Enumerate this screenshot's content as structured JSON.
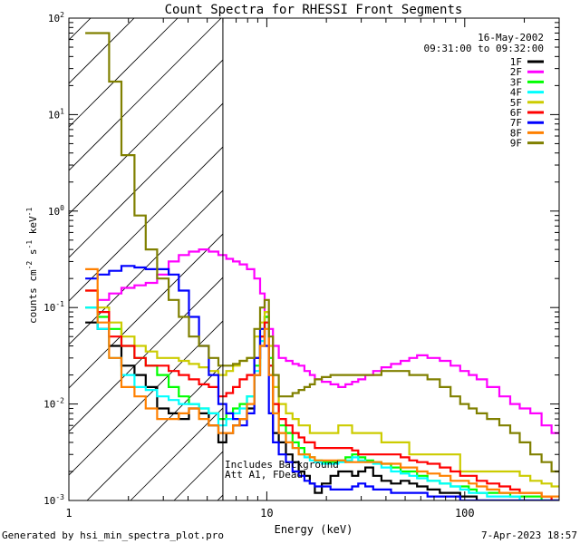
{
  "chart_data": {
    "type": "line",
    "title": "Count Spectra for RHESSI Front Segments",
    "xlabel": "Energy (keV)",
    "ylabel_main": "counts cm",
    "ylabel_sup1": "-2",
    "ylabel_mid": " s",
    "ylabel_sup2": "-1",
    "ylabel_mid2": " keV",
    "ylabel_sup3": "-1",
    "xscale": "log",
    "yscale": "log",
    "xlim": [
      1.0,
      300.0
    ],
    "ylim": [
      0.001,
      100.0
    ],
    "x_ticks": [
      {
        "value": 1,
        "label": "1"
      },
      {
        "value": 10,
        "label": "10"
      },
      {
        "value": 100,
        "label": "100"
      }
    ],
    "y_ticks": [
      {
        "value": 0.001,
        "base": "10",
        "exp": "-3"
      },
      {
        "value": 0.01,
        "base": "10",
        "exp": "-2"
      },
      {
        "value": 0.1,
        "base": "10",
        "exp": "-1"
      },
      {
        "value": 1,
        "base": "10",
        "exp": "0"
      },
      {
        "value": 10,
        "base": "10",
        "exp": "1"
      },
      {
        "value": 100,
        "base": "10",
        "exp": "2"
      }
    ],
    "date": "16-May-2002",
    "time_range": "09:31:00 to 09:32:00",
    "annotation_line1": "Includes Background",
    "annotation_line2": "Att A1, FDead",
    "attenuator_cutoff_kev": 6.0,
    "legend_position": "top-right",
    "series": [
      {
        "name": "1F",
        "color": "#000000",
        "x": [
          1.3,
          1.5,
          1.7,
          2.0,
          2.3,
          2.6,
          3.0,
          3.4,
          3.8,
          4.3,
          4.8,
          5.4,
          6.0,
          6.5,
          7.0,
          7.6,
          8.3,
          9.0,
          9.5,
          10.0,
          10.5,
          11.0,
          12.0,
          13.0,
          14.0,
          15.0,
          16.0,
          17.0,
          18.0,
          20.0,
          22.0,
          24.0,
          26.0,
          28.0,
          30.0,
          33.0,
          36.0,
          40.0,
          45.0,
          50.0,
          55.0,
          60.0,
          70.0,
          80.0,
          90.0,
          100.0,
          110.0,
          120.0,
          140.0,
          160.0,
          180.0,
          200.0,
          230.0,
          260.0,
          290.0
        ],
        "y": [
          0.07,
          0.06,
          0.04,
          0.025,
          0.02,
          0.015,
          0.009,
          0.008,
          0.007,
          0.009,
          0.008,
          0.006,
          0.004,
          0.005,
          0.006,
          0.007,
          0.009,
          0.02,
          0.04,
          0.08,
          0.02,
          0.005,
          0.004,
          0.003,
          0.0025,
          0.002,
          0.0018,
          0.0015,
          0.0012,
          0.0015,
          0.0018,
          0.002,
          0.002,
          0.0018,
          0.002,
          0.0022,
          0.0018,
          0.0016,
          0.0015,
          0.0016,
          0.0015,
          0.0014,
          0.0013,
          0.0012,
          0.0012,
          0.0011,
          0.0011,
          0.001,
          0.001,
          0.001,
          0.001,
          0.001,
          0.001,
          0.001,
          0.001
        ]
      },
      {
        "name": "2F",
        "color": "#ff00ff",
        "x": [
          1.3,
          1.5,
          1.7,
          2.0,
          2.3,
          2.6,
          3.0,
          3.4,
          3.8,
          4.3,
          4.8,
          5.4,
          6.0,
          6.5,
          7.0,
          7.6,
          8.3,
          9.0,
          9.5,
          10.0,
          10.5,
          11.0,
          12.0,
          13.0,
          14.0,
          15.0,
          16.0,
          17.0,
          18.0,
          20.0,
          22.0,
          24.0,
          26.0,
          28.0,
          30.0,
          33.0,
          36.0,
          40.0,
          45.0,
          50.0,
          55.0,
          60.0,
          70.0,
          80.0,
          90.0,
          100.0,
          110.0,
          120.0,
          140.0,
          160.0,
          180.0,
          200.0,
          230.0,
          260.0,
          290.0
        ],
        "y": [
          0.1,
          0.12,
          0.14,
          0.16,
          0.17,
          0.18,
          0.22,
          0.3,
          0.35,
          0.38,
          0.4,
          0.38,
          0.35,
          0.32,
          0.3,
          0.28,
          0.25,
          0.2,
          0.14,
          0.09,
          0.06,
          0.04,
          0.03,
          0.028,
          0.026,
          0.025,
          0.022,
          0.02,
          0.018,
          0.017,
          0.016,
          0.015,
          0.016,
          0.017,
          0.018,
          0.02,
          0.022,
          0.024,
          0.026,
          0.028,
          0.03,
          0.032,
          0.03,
          0.028,
          0.025,
          0.022,
          0.02,
          0.018,
          0.015,
          0.012,
          0.01,
          0.009,
          0.008,
          0.006,
          0.005
        ]
      },
      {
        "name": "3F",
        "color": "#00ff00",
        "x": [
          1.3,
          1.5,
          1.7,
          2.0,
          2.3,
          2.6,
          3.0,
          3.4,
          3.8,
          4.3,
          4.8,
          5.4,
          6.0,
          6.5,
          7.0,
          7.6,
          8.3,
          9.0,
          9.5,
          10.0,
          10.5,
          11.0,
          12.0,
          13.0,
          14.0,
          15.0,
          16.0,
          17.0,
          18.0,
          20.0,
          22.0,
          24.0,
          26.0,
          28.0,
          30.0,
          33.0,
          36.0,
          40.0,
          45.0,
          50.0,
          55.0,
          60.0,
          70.0,
          80.0,
          90.0,
          100.0,
          110.0,
          120.0,
          140.0,
          160.0,
          180.0,
          200.0,
          230.0,
          260.0,
          290.0
        ],
        "y": [
          0.1,
          0.08,
          0.06,
          0.04,
          0.03,
          0.025,
          0.02,
          0.015,
          0.012,
          0.01,
          0.009,
          0.008,
          0.007,
          0.008,
          0.009,
          0.01,
          0.012,
          0.025,
          0.05,
          0.08,
          0.03,
          0.01,
          0.006,
          0.005,
          0.004,
          0.0035,
          0.003,
          0.0028,
          0.0026,
          0.0025,
          0.0025,
          0.0026,
          0.0028,
          0.003,
          0.0028,
          0.0026,
          0.0025,
          0.0024,
          0.0022,
          0.002,
          0.002,
          0.0018,
          0.0016,
          0.0015,
          0.0014,
          0.0014,
          0.0013,
          0.0012,
          0.0012,
          0.0012,
          0.0011,
          0.0011,
          0.0011,
          0.001,
          0.001
        ]
      },
      {
        "name": "4F",
        "color": "#00ffff",
        "x": [
          1.3,
          1.5,
          1.7,
          2.0,
          2.3,
          2.6,
          3.0,
          3.4,
          3.8,
          4.3,
          4.8,
          5.4,
          6.0,
          6.5,
          7.0,
          7.6,
          8.3,
          9.0,
          9.5,
          10.0,
          10.5,
          11.0,
          12.0,
          13.0,
          14.0,
          15.0,
          16.0,
          17.0,
          18.0,
          20.0,
          22.0,
          24.0,
          26.0,
          28.0,
          30.0,
          33.0,
          36.0,
          40.0,
          45.0,
          50.0,
          55.0,
          60.0,
          70.0,
          80.0,
          90.0,
          100.0,
          110.0,
          120.0,
          140.0,
          160.0,
          180.0,
          200.0,
          230.0,
          260.0,
          290.0
        ],
        "y": [
          0.1,
          0.06,
          0.03,
          0.02,
          0.015,
          0.014,
          0.012,
          0.011,
          0.01,
          0.01,
          0.009,
          0.008,
          0.006,
          0.007,
          0.008,
          0.009,
          0.012,
          0.022,
          0.045,
          0.07,
          0.025,
          0.008,
          0.005,
          0.004,
          0.0035,
          0.003,
          0.0028,
          0.0026,
          0.0025,
          0.0024,
          0.0024,
          0.0025,
          0.0026,
          0.0028,
          0.0026,
          0.0025,
          0.0024,
          0.0022,
          0.002,
          0.0019,
          0.0018,
          0.0017,
          0.0016,
          0.0015,
          0.0014,
          0.0013,
          0.0012,
          0.0012,
          0.0011,
          0.0011,
          0.0011,
          0.001,
          0.001,
          0.001,
          0.001
        ]
      },
      {
        "name": "5F",
        "color": "#cccc00",
        "x": [
          1.3,
          1.5,
          1.7,
          2.0,
          2.3,
          2.6,
          3.0,
          3.4,
          3.8,
          4.3,
          4.8,
          5.4,
          6.0,
          6.5,
          7.0,
          7.6,
          8.3,
          9.0,
          9.5,
          10.0,
          10.5,
          11.0,
          12.0,
          13.0,
          14.0,
          15.0,
          16.0,
          17.0,
          18.0,
          20.0,
          22.0,
          24.0,
          26.0,
          28.0,
          30.0,
          33.0,
          36.0,
          40.0,
          45.0,
          50.0,
          55.0,
          60.0,
          70.0,
          80.0,
          90.0,
          100.0,
          110.0,
          120.0,
          140.0,
          160.0,
          180.0,
          200.0,
          230.0,
          260.0,
          290.0
        ],
        "y": [
          0.15,
          0.1,
          0.07,
          0.05,
          0.04,
          0.035,
          0.03,
          0.03,
          0.028,
          0.026,
          0.024,
          0.022,
          0.02,
          0.022,
          0.025,
          0.028,
          0.03,
          0.05,
          0.07,
          0.09,
          0.04,
          0.015,
          0.01,
          0.008,
          0.007,
          0.006,
          0.006,
          0.005,
          0.005,
          0.005,
          0.005,
          0.006,
          0.006,
          0.005,
          0.005,
          0.005,
          0.005,
          0.004,
          0.004,
          0.004,
          0.003,
          0.003,
          0.003,
          0.003,
          0.003,
          0.002,
          0.002,
          0.002,
          0.002,
          0.002,
          0.002,
          0.0018,
          0.0016,
          0.0015,
          0.0014
        ]
      },
      {
        "name": "6F",
        "color": "#ff0000",
        "x": [
          1.3,
          1.5,
          1.7,
          2.0,
          2.3,
          2.6,
          3.0,
          3.4,
          3.8,
          4.3,
          4.8,
          5.4,
          6.0,
          6.5,
          7.0,
          7.6,
          8.3,
          9.0,
          9.5,
          10.0,
          10.5,
          11.0,
          12.0,
          13.0,
          14.0,
          15.0,
          16.0,
          17.0,
          18.0,
          20.0,
          22.0,
          24.0,
          26.0,
          28.0,
          30.0,
          33.0,
          36.0,
          40.0,
          45.0,
          50.0,
          55.0,
          60.0,
          70.0,
          80.0,
          90.0,
          100.0,
          110.0,
          120.0,
          140.0,
          160.0,
          180.0,
          200.0,
          230.0,
          260.0,
          290.0
        ],
        "y": [
          0.15,
          0.09,
          0.05,
          0.04,
          0.03,
          0.025,
          0.025,
          0.022,
          0.02,
          0.018,
          0.016,
          0.015,
          0.012,
          0.013,
          0.015,
          0.018,
          0.02,
          0.03,
          0.05,
          0.07,
          0.025,
          0.01,
          0.007,
          0.006,
          0.005,
          0.0045,
          0.004,
          0.004,
          0.0035,
          0.0035,
          0.0035,
          0.0035,
          0.0035,
          0.0033,
          0.003,
          0.003,
          0.003,
          0.003,
          0.003,
          0.0028,
          0.0026,
          0.0025,
          0.0024,
          0.0022,
          0.002,
          0.0018,
          0.0018,
          0.0016,
          0.0015,
          0.0014,
          0.0013,
          0.0012,
          0.0012,
          0.0011,
          0.001
        ]
      },
      {
        "name": "7F",
        "color": "#0000ff",
        "x": [
          1.3,
          1.5,
          1.7,
          2.0,
          2.3,
          2.6,
          3.0,
          3.4,
          3.8,
          4.3,
          4.8,
          5.4,
          6.0,
          6.5,
          7.0,
          7.6,
          8.3,
          9.0,
          9.5,
          10.0,
          10.5,
          11.0,
          12.0,
          13.0,
          14.0,
          15.0,
          16.0,
          17.0,
          18.0,
          20.0,
          22.0,
          24.0,
          26.0,
          28.0,
          30.0,
          33.0,
          36.0,
          40.0,
          45.0,
          50.0,
          55.0,
          60.0,
          70.0,
          80.0,
          90.0,
          100.0,
          110.0,
          120.0,
          140.0,
          160.0,
          180.0,
          200.0,
          230.0,
          260.0,
          290.0
        ],
        "y": [
          0.2,
          0.22,
          0.24,
          0.27,
          0.26,
          0.25,
          0.25,
          0.22,
          0.15,
          0.08,
          0.04,
          0.02,
          0.01,
          0.008,
          0.007,
          0.006,
          0.008,
          0.03,
          0.06,
          0.04,
          0.008,
          0.004,
          0.003,
          0.0025,
          0.002,
          0.0018,
          0.0016,
          0.0015,
          0.0014,
          0.0014,
          0.0013,
          0.0013,
          0.0013,
          0.0014,
          0.0015,
          0.0014,
          0.0013,
          0.0013,
          0.0012,
          0.0012,
          0.0012,
          0.0012,
          0.0011,
          0.0011,
          0.0011,
          0.001,
          0.001,
          0.001,
          0.001,
          0.001,
          0.001,
          0.001,
          0.001,
          0.001,
          0.001
        ]
      },
      {
        "name": "8F",
        "color": "#ff8000",
        "x": [
          1.3,
          1.5,
          1.7,
          2.0,
          2.3,
          2.6,
          3.0,
          3.4,
          3.8,
          4.3,
          4.8,
          5.4,
          6.0,
          6.5,
          7.0,
          7.6,
          8.3,
          9.0,
          9.5,
          10.0,
          10.5,
          11.0,
          12.0,
          13.0,
          14.0,
          15.0,
          16.0,
          17.0,
          18.0,
          20.0,
          22.0,
          24.0,
          26.0,
          28.0,
          30.0,
          33.0,
          36.0,
          40.0,
          45.0,
          50.0,
          55.0,
          60.0,
          70.0,
          80.0,
          90.0,
          100.0,
          110.0,
          120.0,
          140.0,
          160.0,
          180.0,
          200.0,
          230.0,
          260.0,
          290.0
        ],
        "y": [
          0.25,
          0.07,
          0.03,
          0.015,
          0.012,
          0.009,
          0.007,
          0.007,
          0.008,
          0.009,
          0.007,
          0.006,
          0.005,
          0.005,
          0.006,
          0.007,
          0.01,
          0.02,
          0.04,
          0.06,
          0.02,
          0.008,
          0.005,
          0.004,
          0.0035,
          0.003,
          0.003,
          0.0028,
          0.0026,
          0.0026,
          0.0026,
          0.0026,
          0.0025,
          0.0025,
          0.0025,
          0.0025,
          0.0025,
          0.0024,
          0.0024,
          0.0022,
          0.0022,
          0.002,
          0.0019,
          0.0018,
          0.0016,
          0.0016,
          0.0015,
          0.0014,
          0.0013,
          0.0012,
          0.0012,
          0.0012,
          0.0012,
          0.0011,
          0.0011
        ]
      },
      {
        "name": "9F",
        "color": "#808000",
        "x": [
          1.3,
          1.5,
          1.7,
          2.0,
          2.3,
          2.6,
          3.0,
          3.4,
          3.8,
          4.3,
          4.8,
          5.4,
          6.0,
          6.5,
          7.0,
          7.6,
          8.3,
          9.0,
          9.5,
          10.0,
          10.5,
          11.0,
          12.0,
          13.0,
          14.0,
          15.0,
          16.0,
          17.0,
          18.0,
          20.0,
          22.0,
          24.0,
          26.0,
          28.0,
          30.0,
          33.0,
          36.0,
          40.0,
          45.0,
          50.0,
          55.0,
          60.0,
          70.0,
          80.0,
          90.0,
          100.0,
          110.0,
          120.0,
          140.0,
          160.0,
          180.0,
          200.0,
          230.0,
          260.0,
          290.0
        ],
        "y": [
          70.0,
          70.0,
          22.0,
          3.8,
          0.9,
          0.4,
          0.2,
          0.12,
          0.08,
          0.05,
          0.04,
          0.03,
          0.025,
          0.025,
          0.026,
          0.028,
          0.03,
          0.06,
          0.1,
          0.12,
          0.05,
          0.02,
          0.012,
          0.012,
          0.013,
          0.014,
          0.015,
          0.016,
          0.018,
          0.019,
          0.02,
          0.02,
          0.02,
          0.02,
          0.02,
          0.02,
          0.02,
          0.022,
          0.022,
          0.022,
          0.02,
          0.02,
          0.018,
          0.015,
          0.012,
          0.01,
          0.009,
          0.008,
          0.007,
          0.006,
          0.005,
          0.004,
          0.003,
          0.0025,
          0.002
        ]
      }
    ]
  },
  "footer": {
    "left": "Generated by hsi_min_spectra_plot.pro",
    "right": "7-Apr-2023 18:57"
  }
}
